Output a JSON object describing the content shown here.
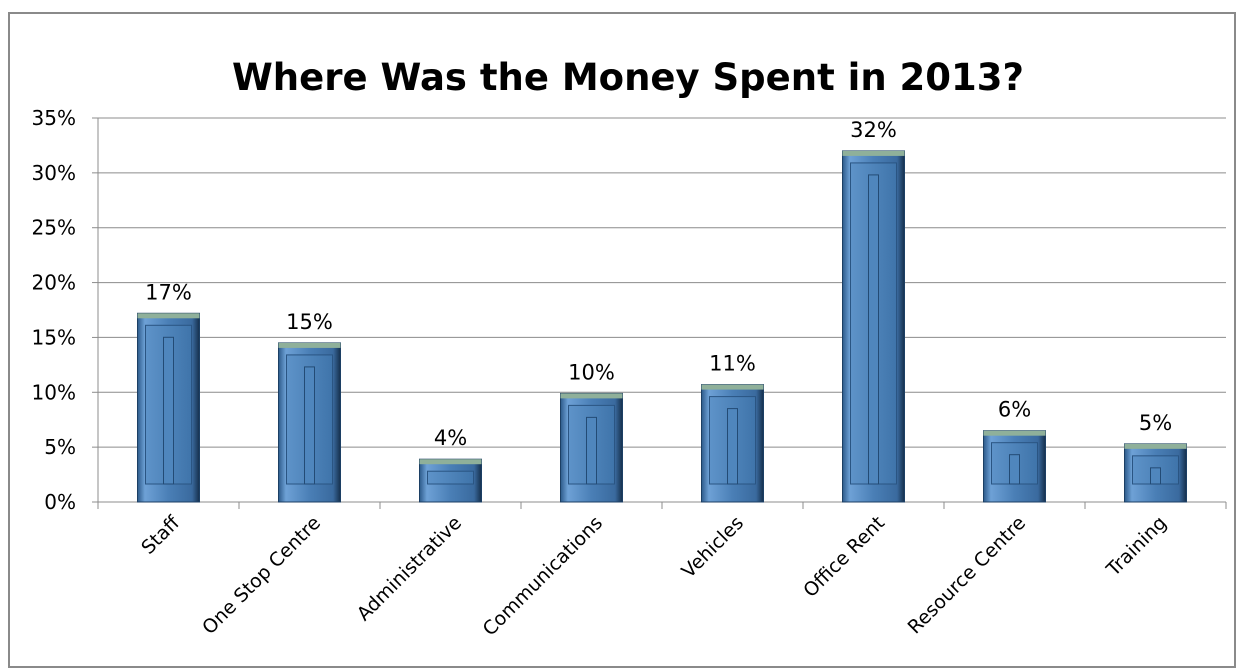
{
  "chart_data": {
    "type": "bar",
    "title": "Where Was the Money Spent in 2013?",
    "categories": [
      "Staff",
      "One Stop Centre",
      "Administrative",
      "Communications",
      "Vehicles",
      "Office Rent",
      "Resource Centre",
      "Training"
    ],
    "values": [
      17.2,
      14.5,
      3.9,
      9.9,
      10.7,
      32.0,
      6.5,
      5.3
    ],
    "data_labels": [
      "17%",
      "15%",
      "4%",
      "10%",
      "11%",
      "32%",
      "6%",
      "5%"
    ],
    "yticks": [
      "0%",
      "5%",
      "10%",
      "15%",
      "20%",
      "25%",
      "30%",
      "35%"
    ],
    "ylim": [
      0,
      35
    ],
    "ystep": 5,
    "grid": true,
    "legend": "none",
    "colors": {
      "bar_main": "#4a7fb6",
      "bar_light": "#6ea1d6",
      "bar_dark": "#1f4b78",
      "bar_cap": "#8fb09a",
      "grid": "#8c8c8c"
    }
  }
}
